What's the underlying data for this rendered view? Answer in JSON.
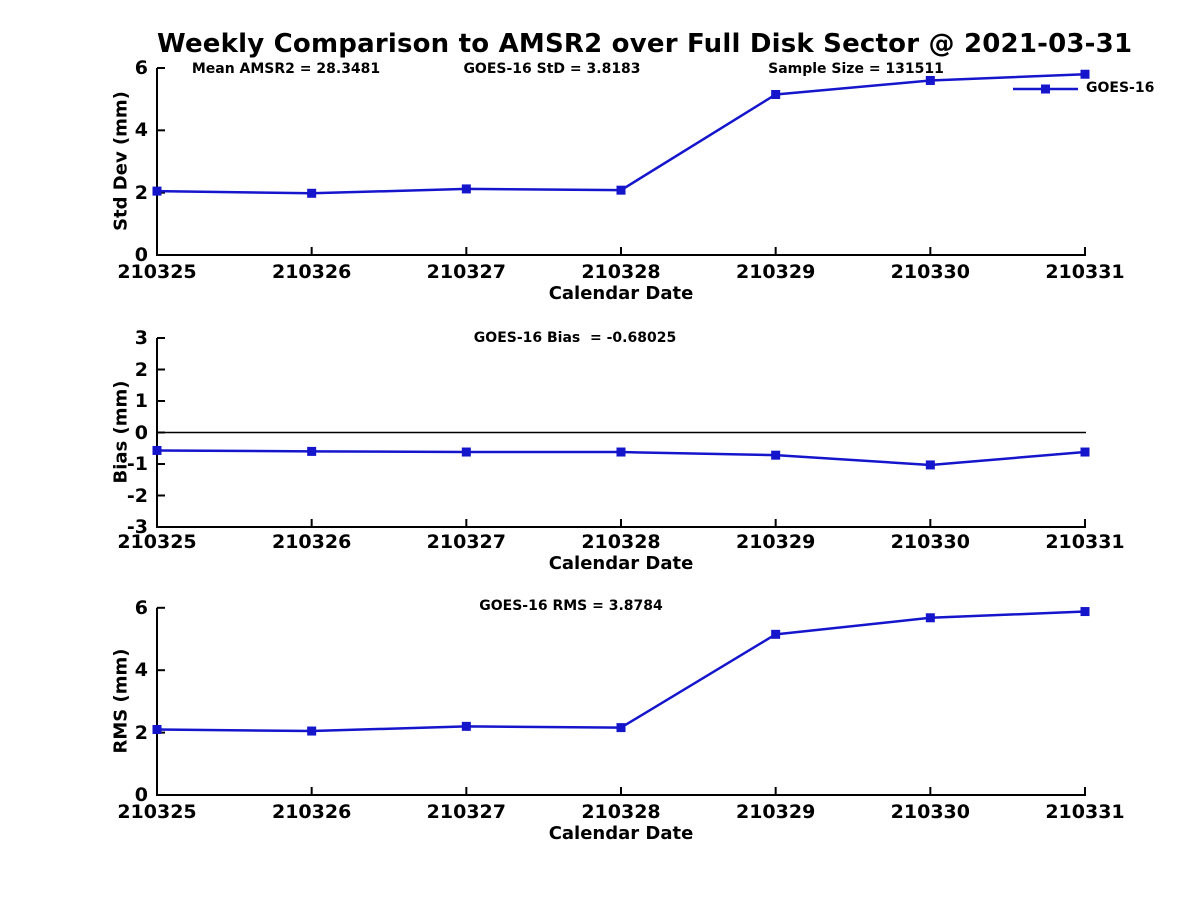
{
  "title": "Weekly Comparison to AMSR2 over Full Disk Sector @ 2021-03-31",
  "colors": {
    "series_blue": "#1515cc",
    "axis_black": "#000000",
    "zero_line_black": "#000000",
    "background": "#ffffff"
  },
  "legend": {
    "label": "GOES-16",
    "marker": "filled-square",
    "position": "upper-right-of-top-plot"
  },
  "chart_data": [
    {
      "type": "line",
      "id": "std-dev-panel",
      "annotations": [
        "Mean AMSR2 = 28.3481",
        "GOES-16 StD = 3.8183",
        "Sample Size = 131511"
      ],
      "ylabel": "Std Dev (mm)",
      "xlabel": "Calendar Date",
      "ylim": [
        0,
        6
      ],
      "yticks": [
        0,
        2,
        4,
        6
      ],
      "grid": false,
      "categories": [
        "210325",
        "210326",
        "210327",
        "210328",
        "210329",
        "210330",
        "210331"
      ],
      "series": [
        {
          "name": "GOES-16",
          "values": [
            2.05,
            1.98,
            2.12,
            2.08,
            5.15,
            5.6,
            5.8
          ]
        }
      ]
    },
    {
      "type": "line",
      "id": "bias-panel",
      "annotations": [
        "GOES-16 Bias  = -0.68025"
      ],
      "ylabel": "Bias (mm)",
      "xlabel": "Calendar Date",
      "ylim": [
        -3,
        3
      ],
      "yticks": [
        3,
        2,
        1,
        0,
        -1,
        -2,
        -3
      ],
      "zero_line": true,
      "grid": false,
      "categories": [
        "210325",
        "210326",
        "210327",
        "210328",
        "210329",
        "210330",
        "210331"
      ],
      "series": [
        {
          "name": "GOES-16",
          "values": [
            -0.57,
            -0.6,
            -0.62,
            -0.62,
            -0.72,
            -1.03,
            -0.62
          ]
        }
      ]
    },
    {
      "type": "line",
      "id": "rms-panel",
      "annotations": [
        "GOES-16 RMS = 3.8784"
      ],
      "ylabel": "RMS (mm)",
      "xlabel": "Calendar Date",
      "ylim": [
        0,
        6
      ],
      "yticks": [
        0,
        2,
        4,
        6
      ],
      "grid": false,
      "categories": [
        "210325",
        "210326",
        "210327",
        "210328",
        "210329",
        "210330",
        "210331"
      ],
      "series": [
        {
          "name": "GOES-16",
          "values": [
            2.1,
            2.05,
            2.2,
            2.16,
            5.15,
            5.68,
            5.88
          ]
        }
      ]
    }
  ]
}
